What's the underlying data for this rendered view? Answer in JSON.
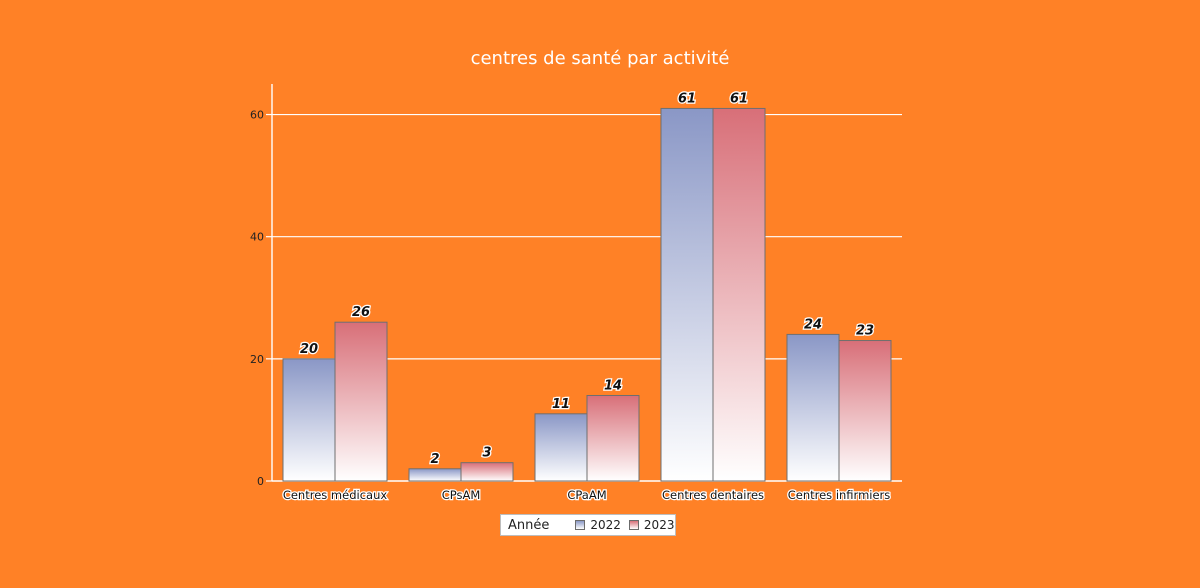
{
  "chart_data": {
    "type": "bar",
    "title": "centres de santé par activité",
    "categories": [
      "Centres médicaux",
      "CPsAM",
      "CPaAM",
      "Centres dentaires",
      "Centres infirmiers"
    ],
    "series": [
      {
        "name": "2022",
        "values": [
          20,
          2,
          11,
          61,
          24
        ],
        "color": "#8A97C6"
      },
      {
        "name": "2023",
        "values": [
          26,
          3,
          14,
          61,
          23
        ],
        "color": "#D86F78"
      }
    ],
    "legend_title": "Année",
    "ylim": [
      0,
      65
    ],
    "yticks": [
      0,
      20,
      40,
      60
    ],
    "grid": true,
    "legend_position": "bottom"
  },
  "colors": {
    "background": "#FF8126",
    "gridline": "#FFFFFF",
    "series_2022": "#8A97C6",
    "series_2023": "#D86F78"
  }
}
